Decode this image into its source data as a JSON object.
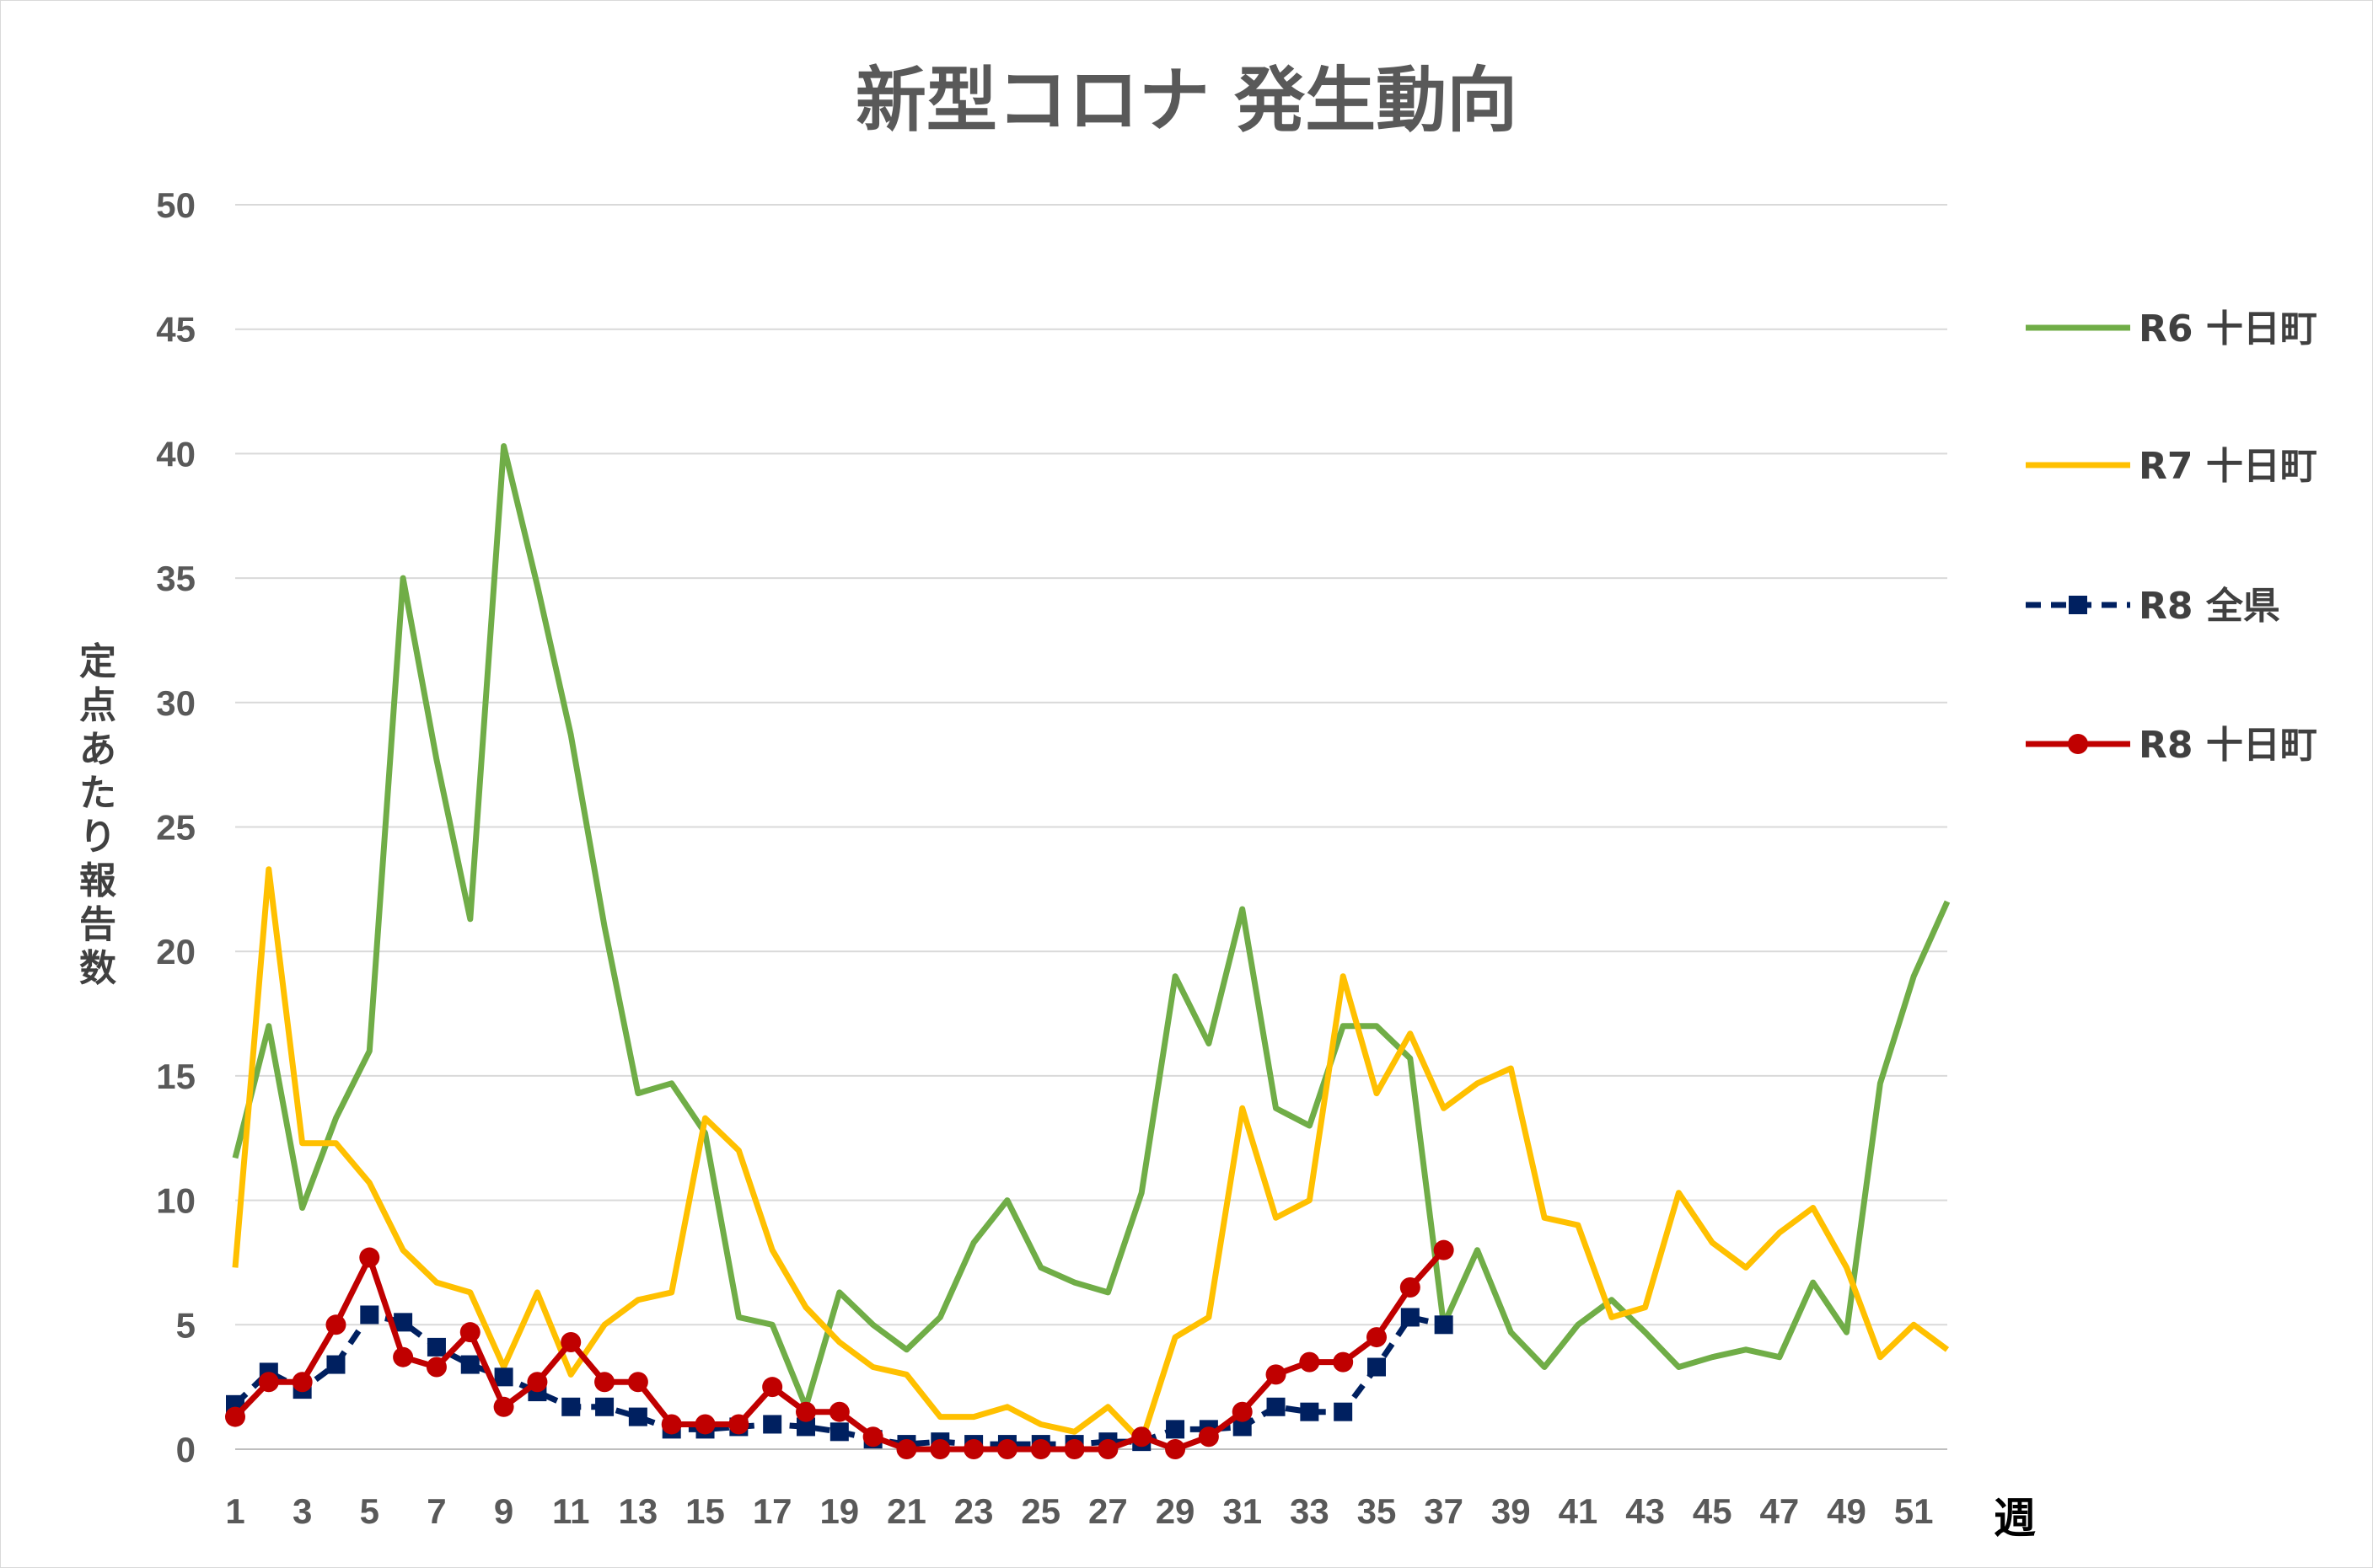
{
  "chart_data": {
    "type": "line",
    "title": "新型コロナ 発生動向",
    "ylabel": "定点あたり報告数",
    "xlabel": "週",
    "ylim": [
      0,
      50
    ],
    "yticks": [
      0,
      5,
      10,
      15,
      20,
      25,
      30,
      35,
      40,
      45,
      50
    ],
    "xticks": [
      1,
      3,
      5,
      7,
      9,
      11,
      13,
      15,
      17,
      19,
      21,
      23,
      25,
      27,
      29,
      31,
      33,
      35,
      37,
      39,
      41,
      43,
      45,
      47,
      49,
      51
    ],
    "grid": true,
    "legend_position": "right",
    "series": [
      {
        "name": "R6 十日町",
        "color": "#70ad47",
        "marker": "none",
        "dash": "solid",
        "x": [
          1,
          2,
          3,
          4,
          5,
          6,
          7,
          8,
          9,
          10,
          11,
          12,
          13,
          14,
          15,
          16,
          17,
          18,
          19,
          20,
          21,
          22,
          23,
          24,
          25,
          26,
          27,
          28,
          29,
          30,
          31,
          32,
          33,
          34,
          35,
          36,
          37,
          38,
          39,
          40,
          41,
          42,
          43,
          44,
          45,
          46,
          47,
          48,
          49,
          50,
          51,
          52
        ],
        "values": [
          11.7,
          17.0,
          9.7,
          13.3,
          16.0,
          35.0,
          27.7,
          21.3,
          40.3,
          34.7,
          28.7,
          21.0,
          14.3,
          14.7,
          12.7,
          5.3,
          5.0,
          1.7,
          6.3,
          5.0,
          4.0,
          5.3,
          8.3,
          10.0,
          7.3,
          6.7,
          6.3,
          10.3,
          19.0,
          16.3,
          21.7,
          13.7,
          13.0,
          17.0,
          17.0,
          15.7,
          5.0,
          8.0,
          4.7,
          3.3,
          5.0,
          6.0,
          4.7,
          3.3,
          3.7,
          4.0,
          3.7,
          6.7,
          4.7,
          14.7,
          19.0,
          22.0
        ]
      },
      {
        "name": "R7 十日町",
        "color": "#ffc000",
        "marker": "none",
        "dash": "solid",
        "x": [
          1,
          2,
          3,
          4,
          5,
          6,
          7,
          8,
          9,
          10,
          11,
          12,
          13,
          14,
          15,
          16,
          17,
          18,
          19,
          20,
          21,
          22,
          23,
          24,
          25,
          26,
          27,
          28,
          29,
          30,
          31,
          32,
          33,
          34,
          35,
          36,
          37,
          38,
          39,
          40,
          41,
          42,
          43,
          44,
          45,
          46,
          47,
          48,
          49,
          50,
          51,
          52
        ],
        "values": [
          7.3,
          23.3,
          12.3,
          12.3,
          10.7,
          8.0,
          6.7,
          6.3,
          3.3,
          6.3,
          3.0,
          5.0,
          6.0,
          6.3,
          13.3,
          12.0,
          8.0,
          5.7,
          4.3,
          3.3,
          3.0,
          1.3,
          1.3,
          1.7,
          1.0,
          0.7,
          1.7,
          0.3,
          4.5,
          5.3,
          13.7,
          9.3,
          10.0,
          19.0,
          14.3,
          16.7,
          13.7,
          14.7,
          15.3,
          9.3,
          9.0,
          5.3,
          5.7,
          10.3,
          8.3,
          7.3,
          8.7,
          9.7,
          7.3,
          3.7,
          5.0,
          4.0
        ]
      },
      {
        "name": "R8 全県",
        "color": "#002060",
        "marker": "square",
        "dash": "dashed",
        "x": [
          1,
          2,
          3,
          4,
          5,
          6,
          7,
          8,
          9,
          10,
          11,
          12,
          13,
          14,
          15,
          16,
          17,
          18,
          19,
          20,
          21,
          22,
          23,
          24,
          25,
          26,
          27,
          28,
          29,
          30,
          31,
          32,
          33,
          34,
          35,
          36,
          37
        ],
        "values": [
          1.8,
          3.1,
          2.4,
          3.4,
          5.4,
          5.1,
          4.1,
          3.4,
          2.9,
          2.3,
          1.7,
          1.7,
          1.3,
          0.8,
          0.8,
          0.9,
          1.0,
          0.9,
          0.7,
          0.4,
          0.2,
          0.3,
          0.2,
          0.2,
          0.2,
          0.2,
          0.3,
          0.3,
          0.8,
          0.8,
          0.9,
          1.7,
          1.5,
          1.5,
          3.3,
          5.3,
          5.0
        ]
      },
      {
        "name": "R8 十日町",
        "color": "#c00000",
        "marker": "circle",
        "dash": "solid",
        "x": [
          1,
          2,
          3,
          4,
          5,
          6,
          7,
          8,
          9,
          10,
          11,
          12,
          13,
          14,
          15,
          16,
          17,
          18,
          19,
          20,
          21,
          22,
          23,
          24,
          25,
          26,
          27,
          28,
          29,
          30,
          31,
          32,
          33,
          34,
          35,
          36,
          37
        ],
        "values": [
          1.3,
          2.7,
          2.7,
          5.0,
          7.7,
          3.7,
          3.3,
          4.7,
          1.7,
          2.7,
          4.3,
          2.7,
          2.7,
          1.0,
          1.0,
          1.0,
          2.5,
          1.5,
          1.5,
          0.5,
          0.0,
          0.0,
          0.0,
          0.0,
          0.0,
          0.0,
          0.0,
          0.5,
          0.0,
          0.5,
          1.5,
          3.0,
          3.5,
          3.5,
          4.5,
          6.5,
          8.0
        ]
      }
    ]
  }
}
